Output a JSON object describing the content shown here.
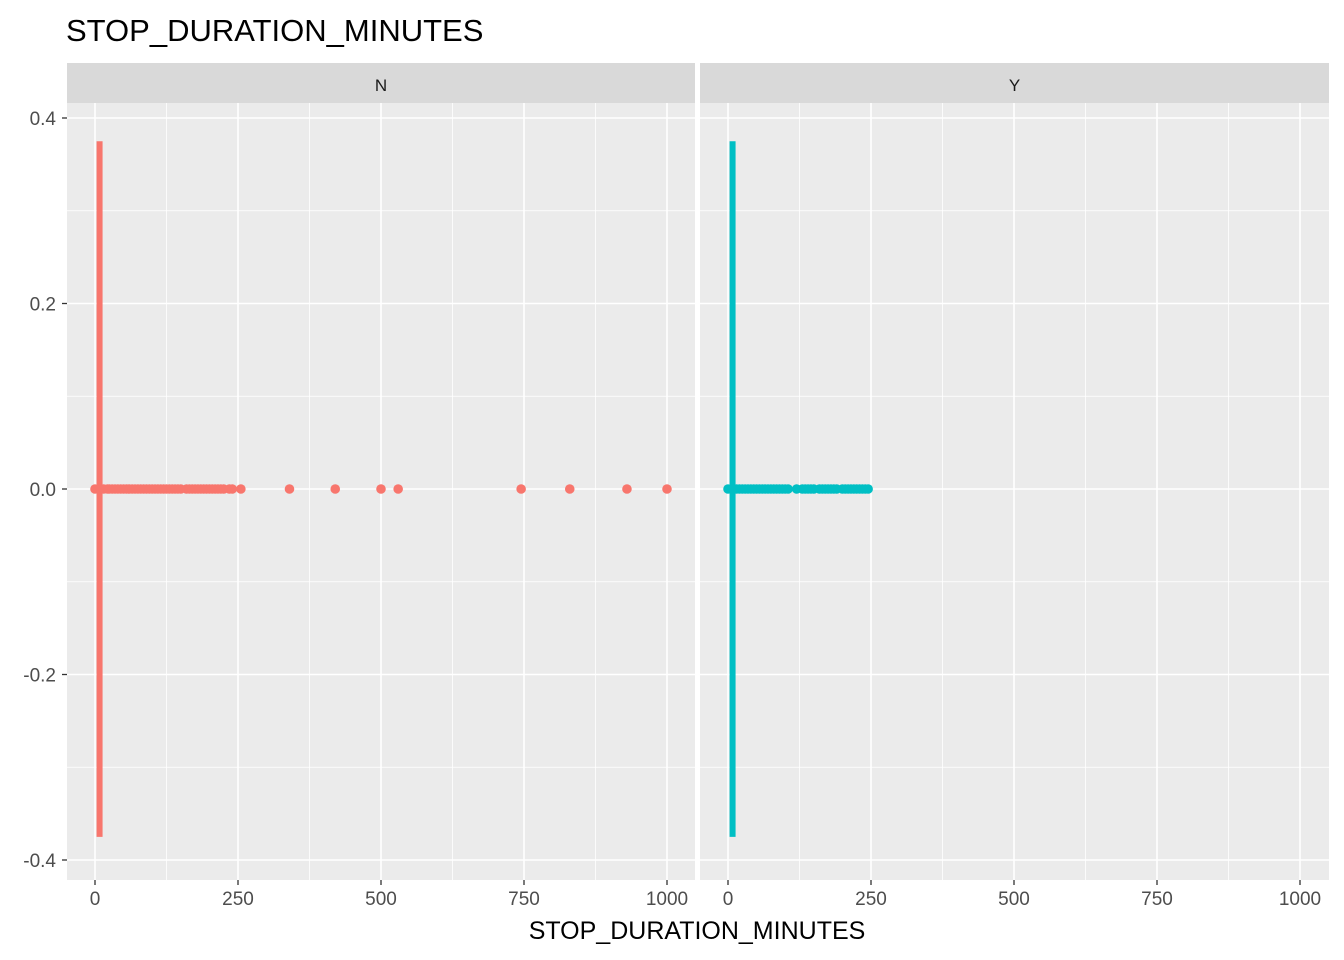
{
  "chart_data": {
    "type": "scatter",
    "title": "STOP_DURATION_MINUTES",
    "xlabel": "STOP_DURATION_MINUTES",
    "ylabel": "",
    "xlim": [
      -30,
      1035
    ],
    "ylim": [
      -0.4,
      0.4
    ],
    "x_ticks": [
      0,
      250,
      500,
      750,
      1000
    ],
    "x_tick_labels": [
      "0",
      "250",
      "500",
      "750",
      "1000"
    ],
    "y_ticks": [
      -0.4,
      -0.2,
      0.0,
      0.2,
      0.4
    ],
    "y_tick_labels": [
      "-0.4",
      "-0.2",
      "0.0",
      "0.2",
      "0.4"
    ],
    "grid": true,
    "legend": "none",
    "facets": [
      {
        "label": "N",
        "color": "#F8766D",
        "vertical_line": {
          "x": 8,
          "y_range": [
            -0.375,
            0.375
          ]
        },
        "points_x": [
          0,
          15,
          22,
          25,
          30,
          35,
          40,
          45,
          50,
          55,
          60,
          65,
          70,
          75,
          80,
          85,
          90,
          95,
          100,
          105,
          110,
          115,
          120,
          125,
          130,
          135,
          140,
          145,
          150,
          160,
          165,
          170,
          175,
          180,
          185,
          190,
          195,
          200,
          205,
          210,
          215,
          220,
          225,
          235,
          240,
          255,
          340,
          420,
          500,
          530,
          745,
          830,
          930,
          1000
        ]
      },
      {
        "label": "Y",
        "color": "#00BFC4",
        "vertical_line": {
          "x": 8,
          "y_range": [
            -0.375,
            0.375
          ]
        },
        "points_x": [
          0,
          15,
          20,
          25,
          30,
          35,
          40,
          45,
          50,
          55,
          60,
          65,
          70,
          75,
          80,
          85,
          90,
          95,
          100,
          105,
          120,
          130,
          135,
          140,
          145,
          150,
          160,
          165,
          170,
          175,
          180,
          185,
          190,
          200,
          205,
          210,
          215,
          220,
          225,
          230,
          235,
          240,
          245
        ]
      }
    ]
  }
}
